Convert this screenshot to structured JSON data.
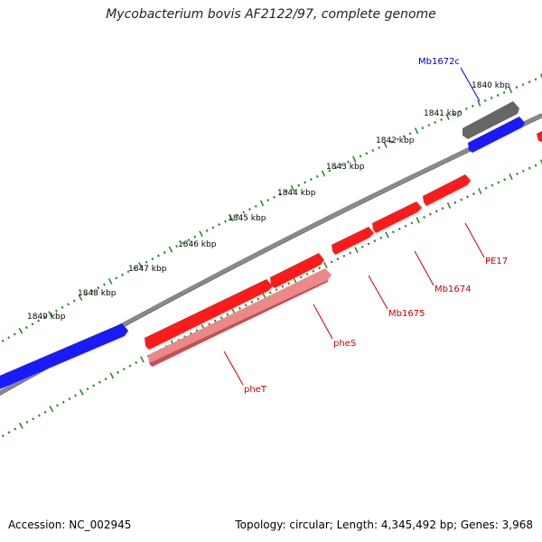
{
  "title": "Mycobacterium bovis AF2122/97, complete genome",
  "footer": {
    "accession_prefix": "Accession: ",
    "accession": "NC_002945",
    "stats": "Topology: circular; Length: 4,345,492 bp; Genes: 3,968"
  },
  "colors": {
    "forward_gene": "#1a1aff",
    "reverse_gene": "#ff1a1a",
    "pseudo_gene": "#666666",
    "highlight_gene": "#ee8888",
    "backbone": "#888888",
    "ticks": "#2a8a2a",
    "label_blue": "#0000cc",
    "label_red": "#cc0000"
  },
  "kbp_labels": [
    "1840 kbp",
    "1841 kbp",
    "1842 kbp",
    "1843 kbp",
    "1844 kbp",
    "1845 kbp",
    "1846 kbp",
    "1847 kbp",
    "1848 kbp",
    "1849 kbp"
  ],
  "gene_labels": [
    {
      "name": "Mb1672c",
      "color": "blue"
    },
    {
      "name": "PE17",
      "color": "red"
    },
    {
      "name": "Mb1674",
      "color": "red"
    },
    {
      "name": "Mb1675",
      "color": "red"
    },
    {
      "name": "pheS",
      "color": "red"
    },
    {
      "name": "pheT",
      "color": "red"
    }
  ]
}
